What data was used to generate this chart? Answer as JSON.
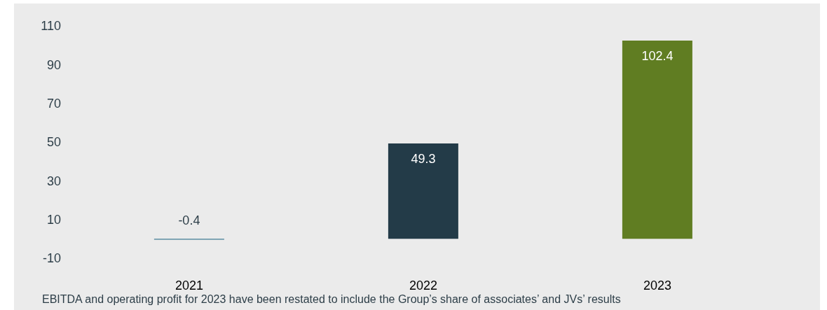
{
  "chart_data": {
    "type": "bar",
    "categories": [
      "2021",
      "2022",
      "2023"
    ],
    "values": [
      -0.4,
      49.3,
      102.4
    ],
    "colors": [
      "#3f7a94",
      "#233b48",
      "#607d22"
    ],
    "ylim": [
      -10,
      110
    ],
    "yticks": [
      -10,
      10,
      30,
      50,
      70,
      90,
      110
    ],
    "grid": false,
    "data_labels": true,
    "annotations": [
      "EBITDA and operating profit for 2023 have been restated to include the Group’s share of associates’ and JVs’ results"
    ]
  }
}
